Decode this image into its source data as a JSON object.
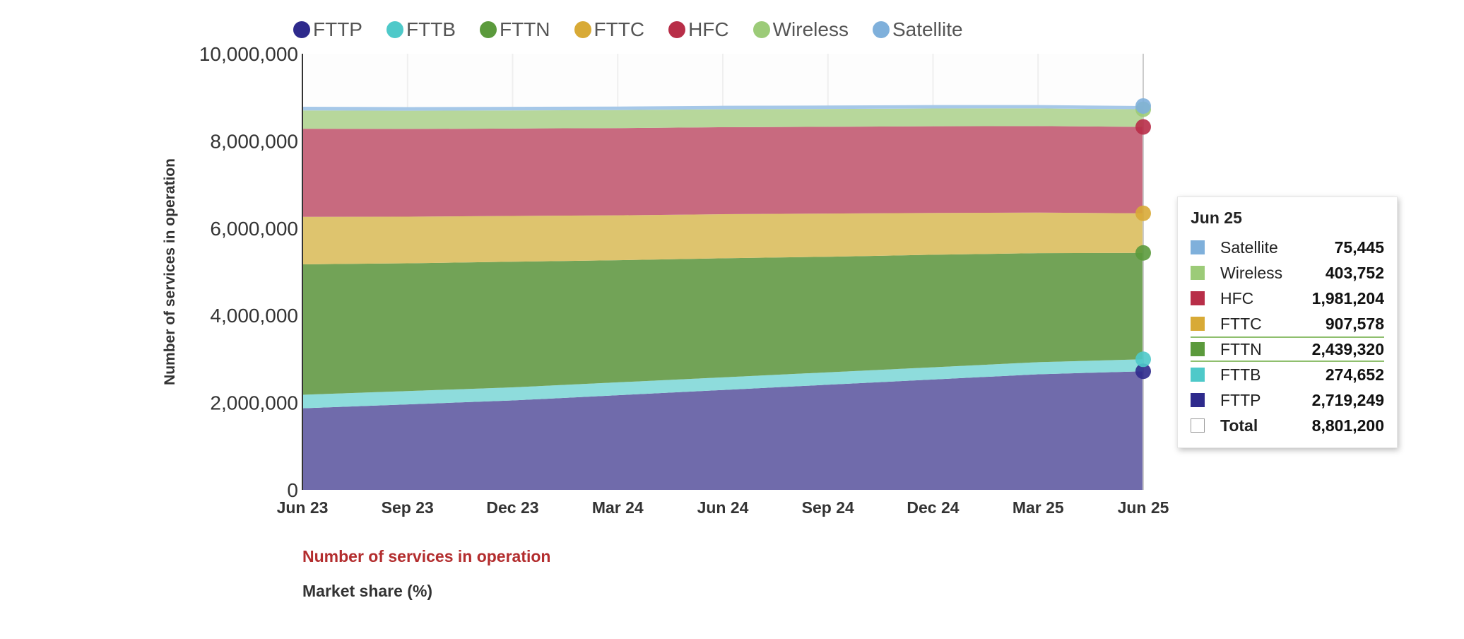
{
  "chart_data": {
    "type": "area",
    "stacked": true,
    "x": [
      "Jun 23",
      "Sep 23",
      "Dec 23",
      "Mar 24",
      "Jun 24",
      "Sep 24",
      "Dec 24",
      "Mar 25",
      "Jun 25"
    ],
    "ylabel": "Number of services in operation",
    "ylim": [
      0,
      10000000
    ],
    "yticks": [
      0,
      2000000,
      4000000,
      6000000,
      8000000,
      10000000
    ],
    "ytick_labels": [
      "0",
      "2,000,000",
      "4,000,000",
      "6,000,000",
      "8,000,000",
      "10,000,000"
    ],
    "grid": true,
    "legend_position": "top",
    "series": [
      {
        "name": "FTTP",
        "color": "#2e2a8c",
        "fill": "#706bab",
        "values": [
          1870000,
          1960000,
          2050000,
          2170000,
          2290000,
          2410000,
          2530000,
          2650000,
          2719249
        ]
      },
      {
        "name": "FTTB",
        "color": "#4ec9c9",
        "fill": "#8edcdc",
        "values": [
          310000,
          305000,
          300000,
          295000,
          290000,
          285000,
          280000,
          277000,
          274652
        ]
      },
      {
        "name": "FTTN",
        "color": "#5b9a3c",
        "fill": "#72a357",
        "values": [
          2990000,
          2930000,
          2880000,
          2800000,
          2730000,
          2650000,
          2580000,
          2500000,
          2439320
        ]
      },
      {
        "name": "FTTC",
        "color": "#d8aa36",
        "fill": "#dec46e",
        "values": [
          1090000,
          1070000,
          1050000,
          1030000,
          1010000,
          990000,
          960000,
          930000,
          907578
        ]
      },
      {
        "name": "HFC",
        "color": "#b82e48",
        "fill": "#c86a7f",
        "values": [
          2020000,
          2010000,
          2005000,
          2000000,
          1995000,
          1990000,
          1987000,
          1984000,
          1981204
        ]
      },
      {
        "name": "Wireless",
        "color": "#9ccb78",
        "fill": "#b7d79b",
        "values": [
          420000,
          418000,
          415000,
          413000,
          411000,
          409000,
          407000,
          405000,
          403752
        ]
      },
      {
        "name": "Satellite",
        "color": "#7fb0db",
        "fill": "#a6c8e8",
        "values": [
          85000,
          84000,
          82000,
          81000,
          80000,
          79000,
          78000,
          76500,
          75445
        ]
      }
    ]
  },
  "tooltip": {
    "title": "Jun 25",
    "rows": [
      {
        "name": "Satellite",
        "value": "75,445",
        "color": "#7fb0db"
      },
      {
        "name": "Wireless",
        "value": "403,752",
        "color": "#9ccb78"
      },
      {
        "name": "HFC",
        "value": "1,981,204",
        "color": "#b82e48"
      },
      {
        "name": "FTTC",
        "value": "907,578",
        "color": "#d8aa36"
      },
      {
        "name": "FTTN",
        "value": "2,439,320",
        "color": "#5b9a3c"
      },
      {
        "name": "FTTB",
        "value": "274,652",
        "color": "#4ec9c9"
      },
      {
        "name": "FTTP",
        "value": "2,719,249",
        "color": "#2e2a8c"
      }
    ],
    "total_label": "Total",
    "total_value": "8,801,200"
  },
  "view_links": {
    "active": "Number of services in operation",
    "inactive": "Market share (%)"
  }
}
